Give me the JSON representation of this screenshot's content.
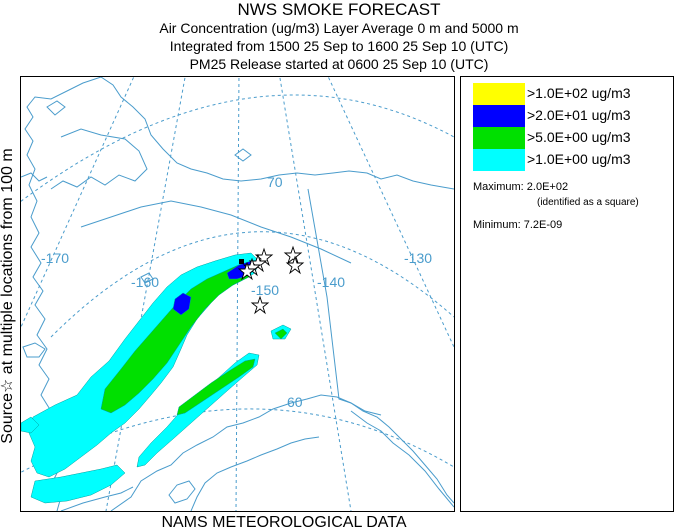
{
  "header": {
    "title": "NWS SMOKE FORECAST",
    "line1": "Air Concentration (ug/m3) Layer Average    0 m and  5000 m",
    "line2": "Integrated from 1500 25 Sep to 1600 25 Sep 10 (UTC)",
    "line3": "PM25 Release started at 0600 25 Sep 10 (UTC)"
  },
  "side_label": "Source☆ at multiple locations   from   100 m",
  "footer": {
    "meteo": "NAMS METEOROLOGICAL DATA"
  },
  "map": {
    "lon_labels": [
      "-170",
      "-160",
      "-150",
      "-140",
      "-130"
    ],
    "lat_labels": [
      "70",
      "60"
    ],
    "colors": {
      "land_line": "#4a9ccc",
      "grid_line": "#4a9ccc",
      "level_1": "#00ffff",
      "level_2": "#00e000",
      "level_3": "#0000ff",
      "level_4": "#ffff00"
    }
  },
  "legend": {
    "items": [
      {
        "color": "#ffff00",
        "label": ">1.0E+02 ug/m3"
      },
      {
        "color": "#0000ff",
        "label": ">2.0E+01 ug/m3"
      },
      {
        "color": "#00e000",
        "label": ">5.0E+00 ug/m3"
      },
      {
        "color": "#00ffff",
        "label": ">1.0E+00 ug/m3"
      }
    ],
    "maximum_label": "Maximum: 2.0E+02",
    "maximum_note": "(identified as a square)",
    "minimum_label": "Minimum: 7.2E-09"
  }
}
